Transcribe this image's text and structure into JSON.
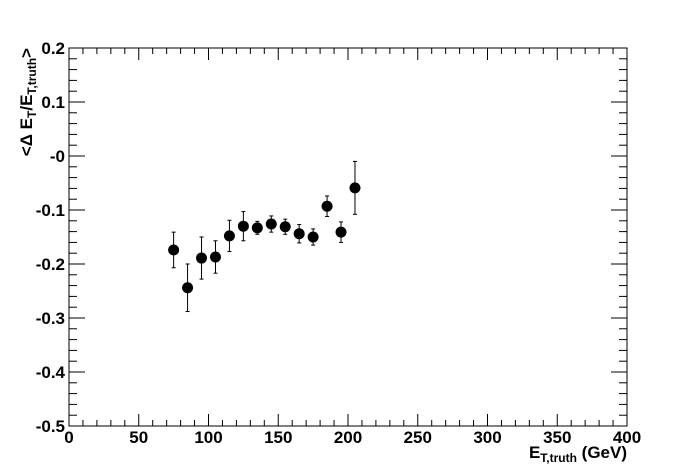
{
  "chart_data": {
    "type": "scatter",
    "x": [
      75,
      85,
      95,
      105,
      115,
      125,
      135,
      145,
      155,
      165,
      175,
      185,
      195,
      205
    ],
    "values": [
      -0.174,
      -0.244,
      -0.189,
      -0.187,
      -0.148,
      -0.13,
      -0.133,
      -0.126,
      -0.131,
      -0.144,
      -0.15,
      -0.093,
      -0.141,
      -0.059
    ],
    "errors": [
      0.033,
      0.044,
      0.039,
      0.03,
      0.029,
      0.027,
      0.012,
      0.015,
      0.014,
      0.017,
      0.015,
      0.019,
      0.019,
      0.049
    ],
    "color": "#000000",
    "xlim": [
      0,
      400
    ],
    "xticks": [
      0,
      50,
      100,
      150,
      200,
      250,
      300,
      350,
      400
    ],
    "ylim": [
      -0.5,
      0.2
    ],
    "yticks": [
      -0.5,
      -0.4,
      -0.3,
      -0.2,
      -0.1,
      {
        "value": 0,
        "label": "-0"
      },
      0.1,
      0.2
    ],
    "x_label": [
      "E",
      "T,truth",
      " (GeV)"
    ],
    "y_label": [
      "<Δ E",
      "T",
      "/E",
      "T,truth",
      ">"
    ]
  }
}
